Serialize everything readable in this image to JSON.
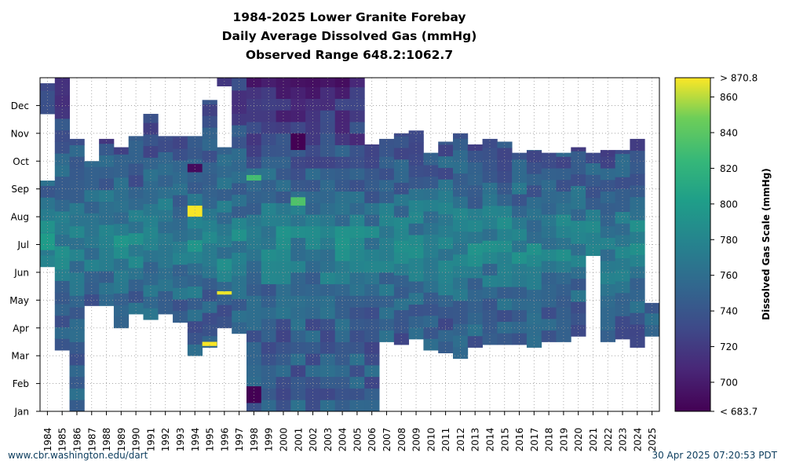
{
  "chart_data": {
    "type": "heatmap",
    "title": "1984-2025 Lower Granite Forebay",
    "subtitle": "Daily Average Dissolved Gas (mmHg)",
    "range_text": "Observed Range 648.2:1062.7",
    "x_categories": [
      "1984",
      "1985",
      "1986",
      "1987",
      "1988",
      "1989",
      "1990",
      "1991",
      "1992",
      "1993",
      "1994",
      "1995",
      "1996",
      "1997",
      "1998",
      "1999",
      "2000",
      "2001",
      "2002",
      "2003",
      "2004",
      "2005",
      "2006",
      "2007",
      "2008",
      "2009",
      "2010",
      "2011",
      "2012",
      "2013",
      "2014",
      "2015",
      "2016",
      "2017",
      "2018",
      "2019",
      "2020",
      "2021",
      "2022",
      "2023",
      "2024",
      "2025"
    ],
    "y_ticks": [
      "Jan",
      "Feb",
      "Mar",
      "Apr",
      "May",
      "Jun",
      "Jul",
      "Aug",
      "Sep",
      "Oct",
      "Nov",
      "Dec"
    ],
    "colorbar": {
      "label": "Dissolved Gas Scale (mmHg)",
      "min": 683.7,
      "max": 870.8,
      "min_label": "< 683.7",
      "max_label": "> 870.8",
      "ticks": [
        700,
        720,
        740,
        760,
        780,
        800,
        820,
        840,
        860
      ],
      "colormap": "viridis"
    },
    "coverage_months": [
      {
        "year": "1984",
        "start": 5.2,
        "end": 8.3,
        "late_start": 10.7,
        "late_end": 11.8
      },
      {
        "year": "1985",
        "start": 2.2,
        "end": 12.0
      },
      {
        "year": "1986",
        "start": 0.0,
        "end": 9.8
      },
      {
        "year": "1987",
        "start": 3.8,
        "end": 9.0
      },
      {
        "year": "1988",
        "start": 3.8,
        "end": 9.8
      },
      {
        "year": "1989",
        "start": 3.0,
        "end": 9.5
      },
      {
        "year": "1990",
        "start": 3.5,
        "end": 9.9
      },
      {
        "year": "1991",
        "start": 3.3,
        "end": 10.7
      },
      {
        "year": "1992",
        "start": 3.5,
        "end": 9.9
      },
      {
        "year": "1993",
        "start": 3.2,
        "end": 9.9
      },
      {
        "year": "1994",
        "start": 2.0,
        "end": 9.9
      },
      {
        "year": "1995",
        "start": 2.3,
        "end": 11.2
      },
      {
        "year": "1996",
        "start": 3.0,
        "end": 9.5,
        "late_start": 11.7,
        "late_end": 12.0
      },
      {
        "year": "1997",
        "start": 2.8,
        "end": 12.0
      },
      {
        "year": "1998",
        "start": 0.0,
        "end": 12.0
      },
      {
        "year": "1999",
        "start": 0.0,
        "end": 12.0
      },
      {
        "year": "2000",
        "start": 0.0,
        "end": 12.0
      },
      {
        "year": "2001",
        "start": 0.0,
        "end": 12.0
      },
      {
        "year": "2002",
        "start": 0.0,
        "end": 12.0
      },
      {
        "year": "2003",
        "start": 0.0,
        "end": 12.0
      },
      {
        "year": "2004",
        "start": 0.0,
        "end": 12.0
      },
      {
        "year": "2005",
        "start": 0.0,
        "end": 12.0
      },
      {
        "year": "2006",
        "start": 0.0,
        "end": 9.6
      },
      {
        "year": "2007",
        "start": 2.5,
        "end": 9.8
      },
      {
        "year": "2008",
        "start": 2.4,
        "end": 10.0
      },
      {
        "year": "2009",
        "start": 2.6,
        "end": 10.1
      },
      {
        "year": "2010",
        "start": 2.2,
        "end": 9.3
      },
      {
        "year": "2011",
        "start": 2.1,
        "end": 9.7
      },
      {
        "year": "2012",
        "start": 1.9,
        "end": 10.0
      },
      {
        "year": "2013",
        "start": 2.3,
        "end": 9.6
      },
      {
        "year": "2014",
        "start": 2.4,
        "end": 9.8
      },
      {
        "year": "2015",
        "start": 2.4,
        "end": 9.7
      },
      {
        "year": "2016",
        "start": 2.4,
        "end": 9.3
      },
      {
        "year": "2017",
        "start": 2.3,
        "end": 9.4
      },
      {
        "year": "2018",
        "start": 2.5,
        "end": 9.3
      },
      {
        "year": "2019",
        "start": 2.5,
        "end": 9.3
      },
      {
        "year": "2020",
        "start": 2.7,
        "end": 9.5
      },
      {
        "year": "2021",
        "start": 5.6,
        "end": 9.3
      },
      {
        "year": "2022",
        "start": 2.5,
        "end": 9.4
      },
      {
        "year": "2023",
        "start": 2.6,
        "end": 9.4
      },
      {
        "year": "2024",
        "start": 2.3,
        "end": 9.8
      },
      {
        "year": "2025",
        "start": 2.7,
        "end": 3.9
      }
    ],
    "hotspots": [
      {
        "year": "1994",
        "month": 7.0,
        "span": 0.4,
        "value": 870
      },
      {
        "year": "1995",
        "month": 2.35,
        "span": 0.15,
        "value": 870
      },
      {
        "year": "1996",
        "month": 4.2,
        "span": 0.12,
        "value": 868
      },
      {
        "year": "2001",
        "month": 7.4,
        "span": 0.3,
        "value": 835
      },
      {
        "year": "1998",
        "month": 8.3,
        "span": 0.2,
        "value": 830
      },
      {
        "year": "1984",
        "month": 5.8,
        "span": 0.6,
        "value": 800
      },
      {
        "year": "2001",
        "month": 9.4,
        "span": 0.6,
        "value": 684
      },
      {
        "year": "1998",
        "month": 0.3,
        "span": 0.6,
        "value": 684
      },
      {
        "year": "1994",
        "month": 8.6,
        "span": 0.3,
        "value": 690
      }
    ],
    "grid": true
  },
  "footer": {
    "left": "www.cbr.washington.edu/dart",
    "right": "30 Apr 2025 07:20:53 PDT"
  }
}
